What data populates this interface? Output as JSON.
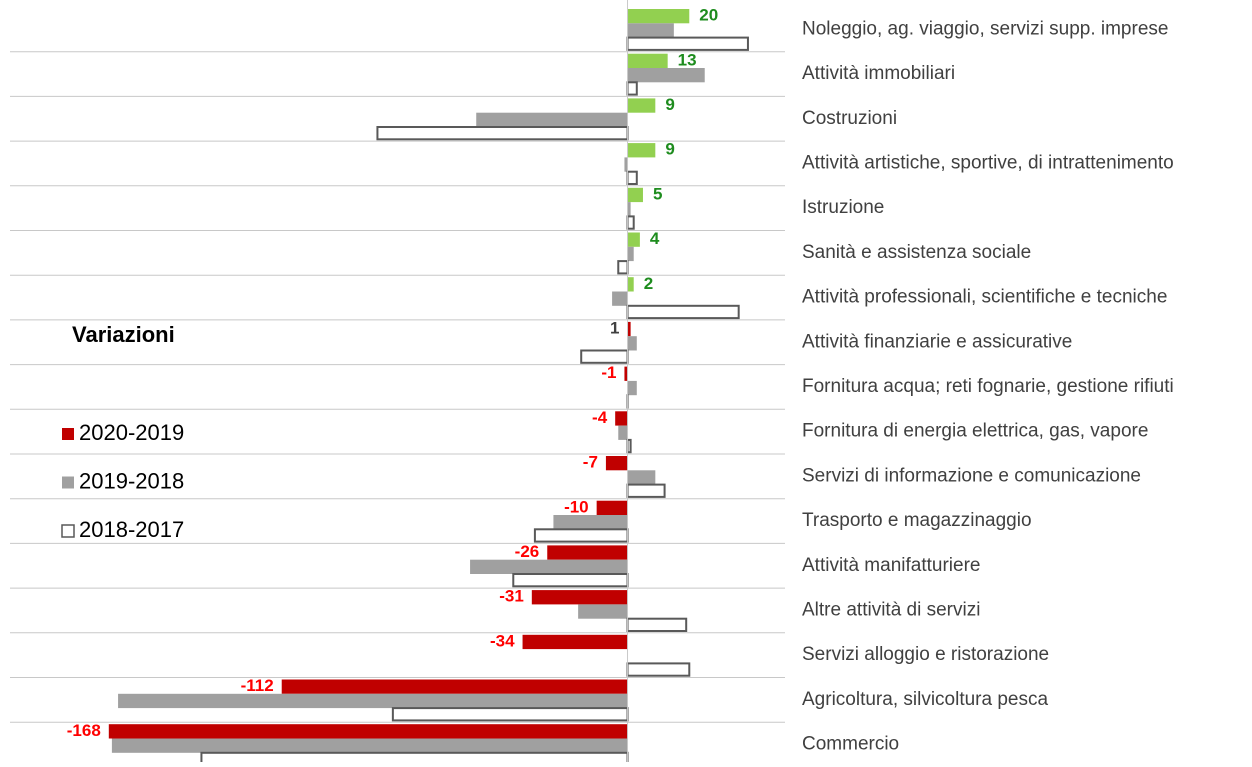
{
  "chart_data": {
    "type": "bar",
    "orientation": "horizontal",
    "legend_title": "Variazioni",
    "legend_position": "left",
    "categories": [
      "Noleggio, ag. viaggio, servizi supp. imprese",
      "Attività immobiliari",
      "Costruzioni",
      "Attività artistiche, sportive, di intrattenimento",
      "Istruzione",
      "Sanità e assistenza sociale",
      "Attività professionali, scientifiche e tecniche",
      "Attività finanziarie e assicurative",
      "Fornitura acqua; reti fognarie, gestione rifiuti",
      "Fornitura di energia elettrica, gas, vapore",
      "Servizi di informazione e comunicazione",
      "Trasporto e magazzinaggio",
      "Attività manifatturiere",
      "Altre attività di servizi",
      "Servizi alloggio e ristorazione",
      "Agricoltura, silvicoltura pesca",
      "Commercio"
    ],
    "xlim": [
      -200,
      51
    ],
    "grid": true,
    "series": [
      {
        "name": "2020-2019",
        "color": "#c00000",
        "colors": [
          "#92d050",
          "#92d050",
          "#92d050",
          "#92d050",
          "#92d050",
          "#92d050",
          "#92d050",
          "#c00000",
          "#c00000",
          "#c00000",
          "#c00000",
          "#c00000",
          "#c00000",
          "#c00000",
          "#c00000",
          "#c00000",
          "#c00000"
        ],
        "value_label_colors": [
          "#1e8c1e",
          "#1e8c1e",
          "#1e8c1e",
          "#1e8c1e",
          "#1e8c1e",
          "#1e8c1e",
          "#1e8c1e",
          "#404040",
          "#ff0000",
          "#ff0000",
          "#ff0000",
          "#ff0000",
          "#ff0000",
          "#ff0000",
          "#ff0000",
          "#ff0000",
          "#ff0000"
        ],
        "values": [
          20,
          13,
          9,
          9,
          5,
          4,
          2,
          1,
          -1,
          -4,
          -7,
          -10,
          -26,
          -31,
          -34,
          -112,
          -168
        ]
      },
      {
        "name": "2019-2018",
        "color": "#a0a0a0",
        "values": [
          15,
          25,
          -49,
          -1,
          1,
          2,
          -5,
          3,
          3,
          -3,
          9,
          -24,
          -51,
          -16,
          0,
          -165,
          -167
        ]
      },
      {
        "name": "2018-2017",
        "color": "#ffffff",
        "stroke": "#595959",
        "values": [
          39,
          3,
          -81,
          3,
          2,
          -3,
          36,
          -15,
          0,
          1,
          12,
          -30,
          -37,
          19,
          20,
          -76,
          -138
        ]
      }
    ]
  }
}
